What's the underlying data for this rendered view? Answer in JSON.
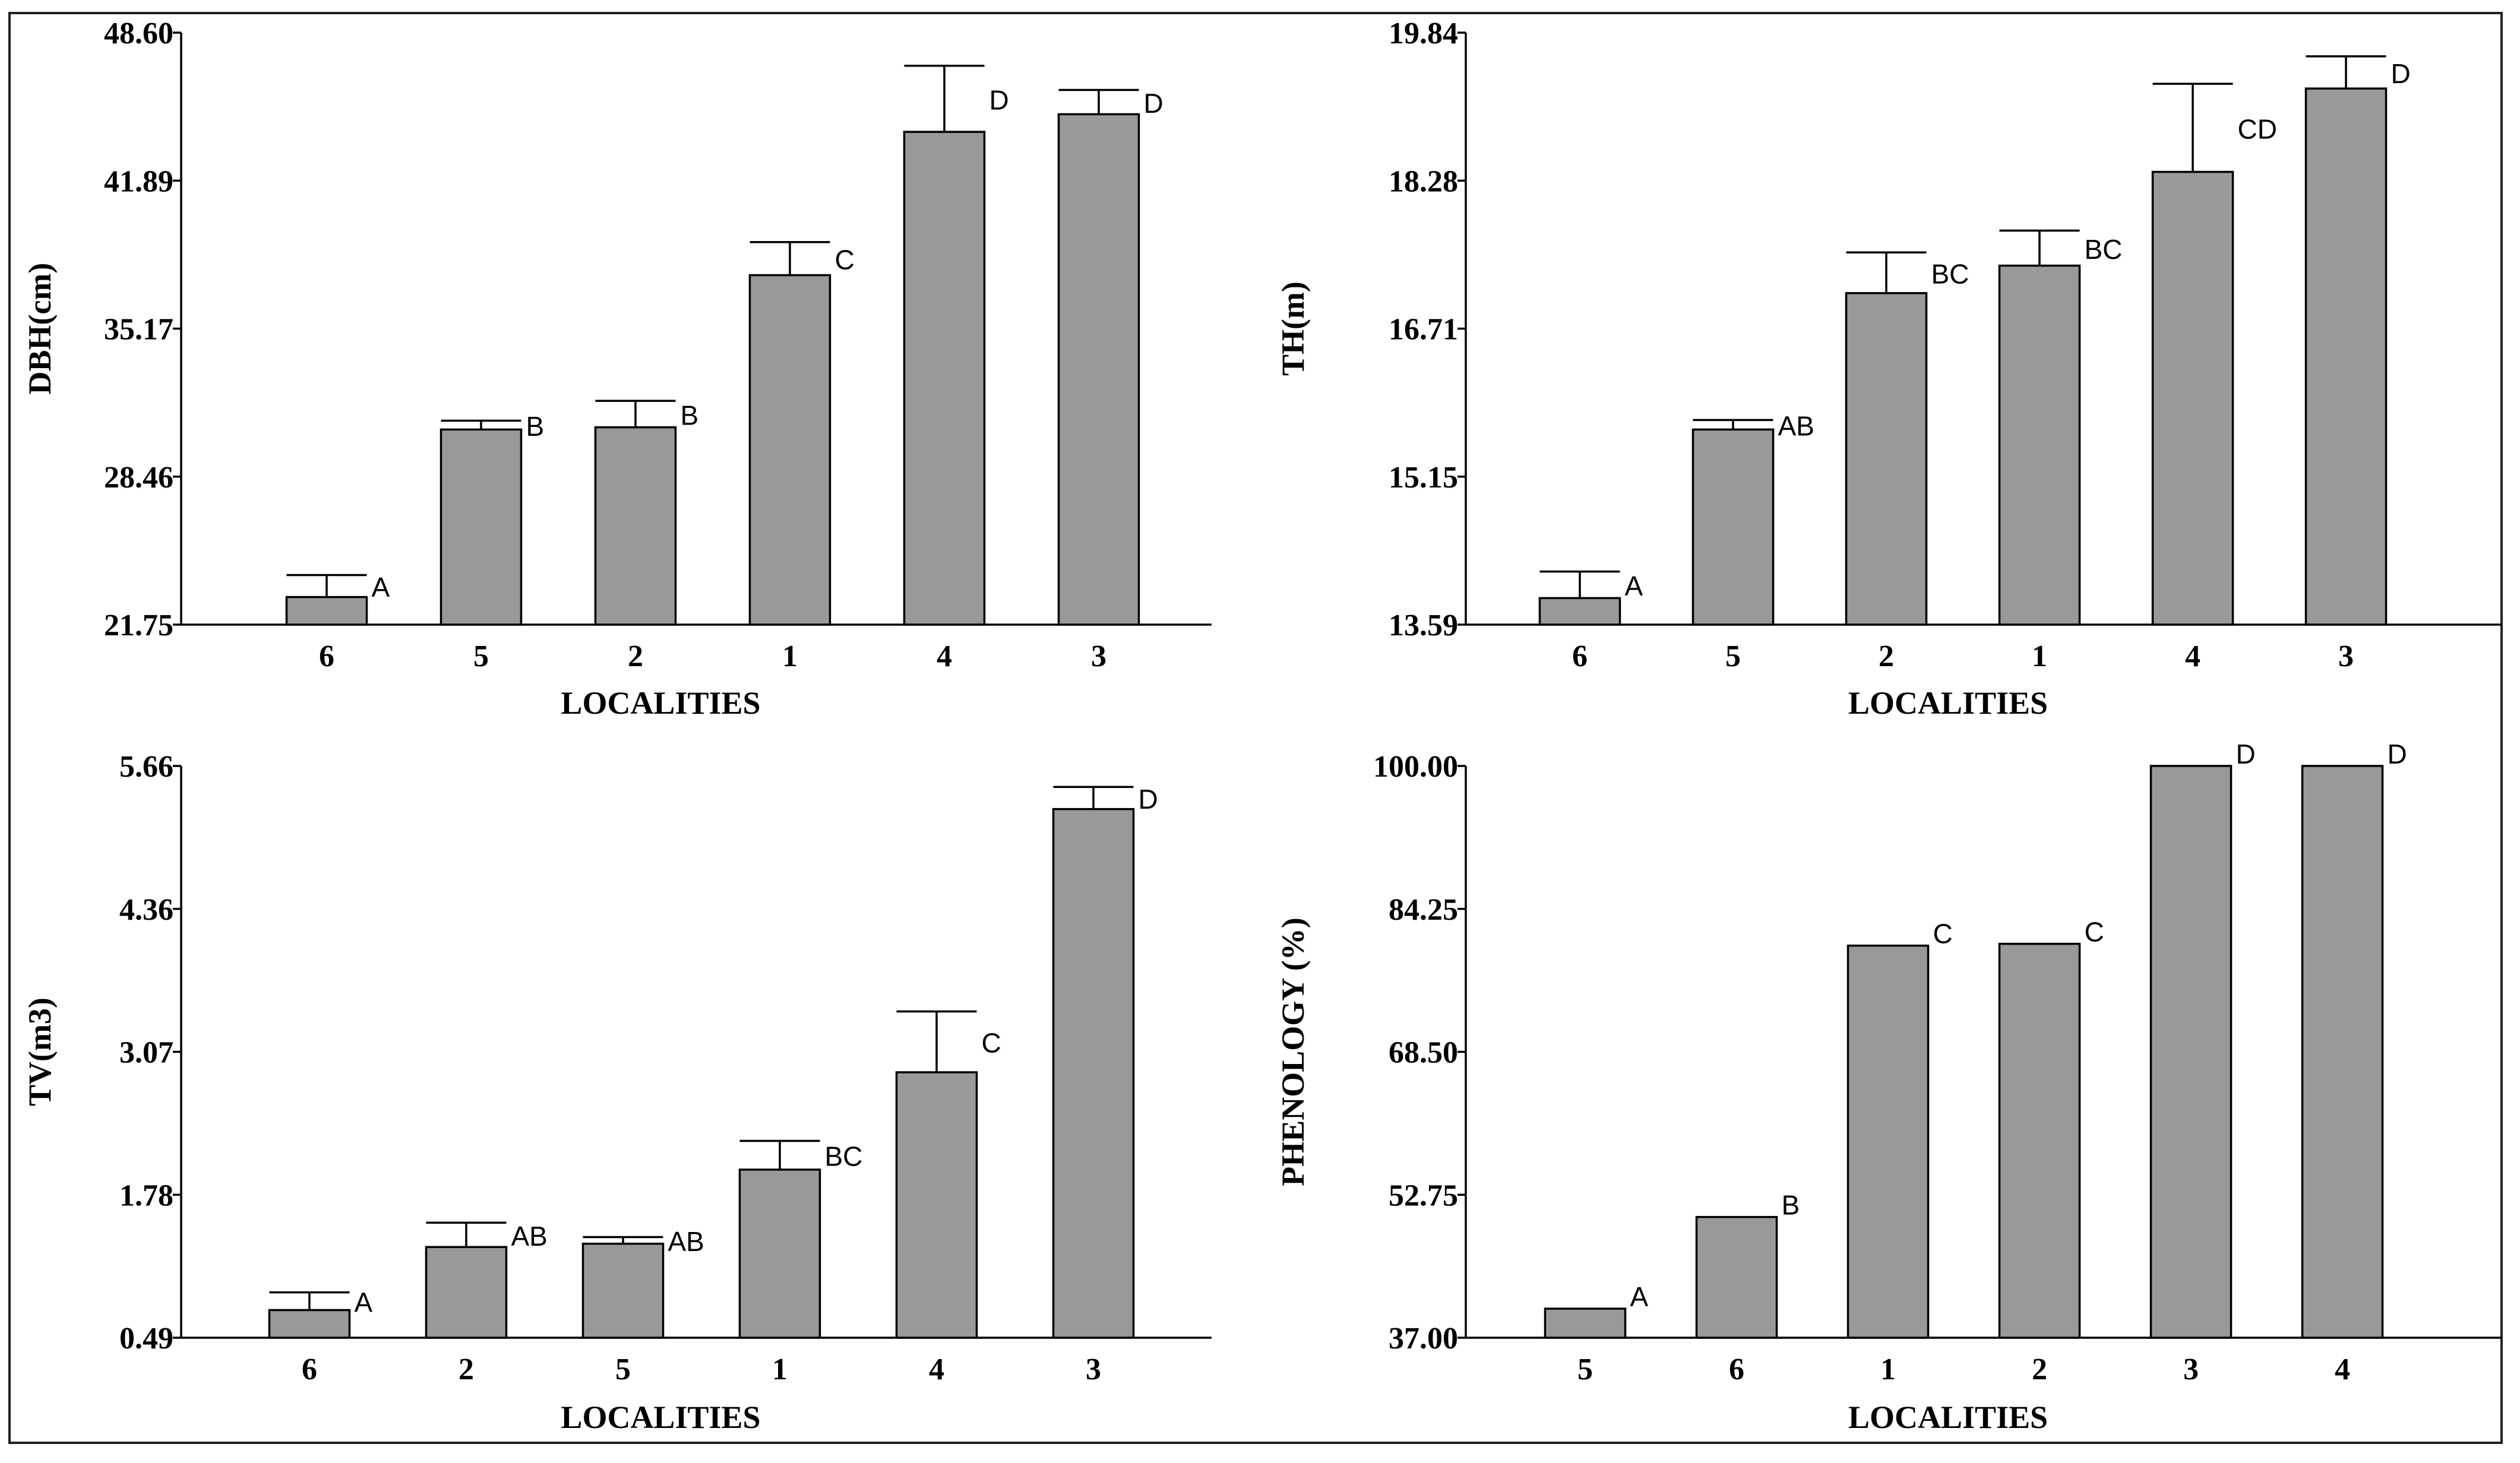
{
  "chart_data": [
    {
      "type": "bar",
      "title": "",
      "xlabel": "LOCALITIES",
      "ylabel": "DBH(cm)",
      "ylim": [
        21.75,
        48.6
      ],
      "yticks": [
        "21.75",
        "28.46",
        "35.17",
        "41.89",
        "48.60"
      ],
      "categories": [
        "6",
        "5",
        "2",
        "1",
        "4",
        "3"
      ],
      "values": [
        23.0,
        30.6,
        30.7,
        37.6,
        44.1,
        44.9
      ],
      "errors": [
        1.0,
        0.4,
        1.2,
        1.5,
        3.0,
        1.1
      ],
      "labels": [
        "A",
        "B",
        "B",
        "C",
        "D",
        "D"
      ],
      "colors": {
        "bar": "#999999"
      }
    },
    {
      "type": "bar",
      "title": "",
      "xlabel": "LOCALITIES",
      "ylabel": "TH(m)",
      "ylim": [
        13.59,
        19.84
      ],
      "yticks": [
        "13.59",
        "15.15",
        "16.71",
        "18.28",
        "19.84"
      ],
      "categories": [
        "6",
        "5",
        "2",
        "1",
        "4",
        "3"
      ],
      "values": [
        13.87,
        15.65,
        17.09,
        17.38,
        18.37,
        19.25
      ],
      "errors": [
        0.28,
        0.1,
        0.43,
        0.37,
        0.93,
        0.34
      ],
      "labels": [
        "A",
        "AB",
        "BC",
        "BC",
        "CD",
        "D"
      ],
      "colors": {
        "bar": "#999999"
      }
    },
    {
      "type": "bar",
      "title": "",
      "xlabel": "LOCALITIES",
      "ylabel": "TV(m3)",
      "ylim": [
        0.49,
        5.66
      ],
      "yticks": [
        "0.49",
        "1.78",
        "3.07",
        "4.36",
        "5.66"
      ],
      "categories": [
        "6",
        "2",
        "5",
        "1",
        "4",
        "3"
      ],
      "values": [
        0.74,
        1.31,
        1.34,
        2.01,
        2.89,
        5.27
      ],
      "errors": [
        0.16,
        0.22,
        0.06,
        0.26,
        0.55,
        0.2
      ],
      "labels": [
        "A",
        "AB",
        "AB",
        "BC",
        "C",
        "D"
      ],
      "colors": {
        "bar": "#999999"
      }
    },
    {
      "type": "bar",
      "title": "",
      "xlabel": "LOCALITIES",
      "ylabel": "PHENOLOGY (%)",
      "ylim": [
        37.0,
        100.0
      ],
      "yticks": [
        "37.00",
        "52.75",
        "68.50",
        "84.25",
        "100.00"
      ],
      "categories": [
        "5",
        "6",
        "1",
        "2",
        "3",
        "4"
      ],
      "values": [
        40.2,
        50.3,
        80.2,
        80.4,
        100.0,
        100.0
      ],
      "errors": [
        0,
        0,
        0,
        0,
        0,
        0
      ],
      "labels": [
        "A",
        "B",
        "C",
        "C",
        "D",
        "D"
      ],
      "colors": {
        "bar": "#999999"
      }
    }
  ]
}
